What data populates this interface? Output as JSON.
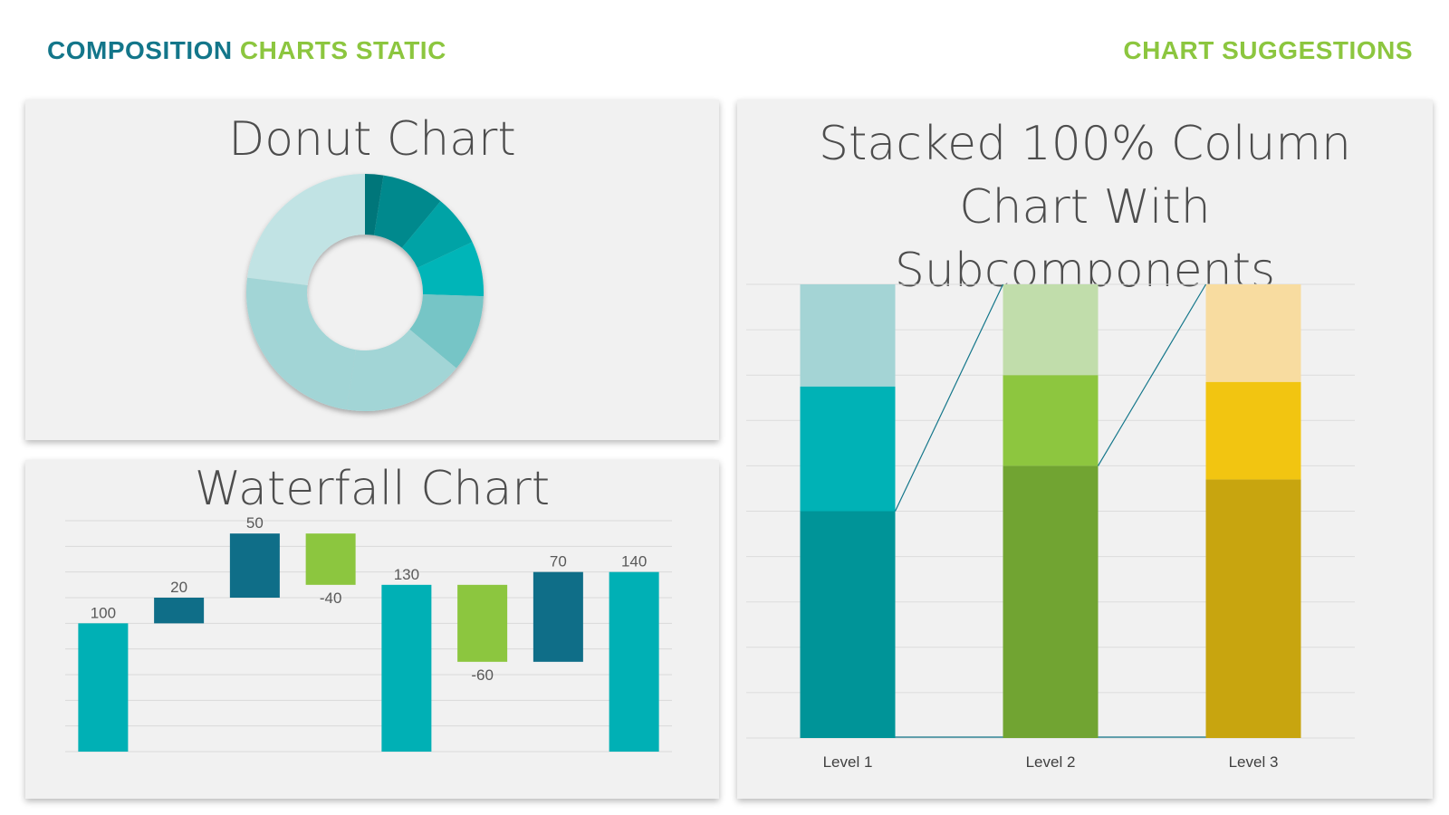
{
  "header": {
    "left_part1": "COMPOSITION",
    "left_part2": "CHARTS STATIC",
    "right": "CHART SUGGESTIONS",
    "color_primary": "#13768a",
    "color_accent": "#8cc63f"
  },
  "chart_data": [
    {
      "type": "pie",
      "variant": "donut",
      "title": "Donut Chart",
      "values": [
        2.5,
        8.5,
        7,
        7.5,
        10.5,
        16.5,
        24.5,
        23
      ],
      "colors": [
        "#00767a",
        "#00898d",
        "#00a3a6",
        "#00b5b8",
        "#76c5c6",
        "#a2d5d6",
        "#a2d5d6",
        "#c1e3e4"
      ],
      "legend": "none"
    },
    {
      "type": "bar",
      "variant": "waterfall",
      "title": "Waterfall Chart",
      "categories": [
        "",
        "",
        "",
        "",
        "",
        "",
        "",
        ""
      ],
      "values": [
        100,
        20,
        50,
        -40,
        130,
        -60,
        70,
        140
      ],
      "data_labels": [
        "100",
        "20",
        "50",
        "-40",
        "130",
        "-60",
        "70",
        "140"
      ],
      "kinds": [
        "total",
        "increase",
        "increase",
        "decrease",
        "total",
        "decrease",
        "increase",
        "total"
      ],
      "colors": {
        "total": "#00b0b5",
        "increase": "#0f6e88",
        "decrease": "#8cc63f"
      },
      "ylim": [
        0,
        180
      ],
      "grid": true
    },
    {
      "type": "bar",
      "variant": "stacked-100",
      "title": "Stacked 100% Column Chart With Subcomponents",
      "categories": [
        "Level 1",
        "Level 2",
        "Level 3"
      ],
      "series": [
        {
          "values": [
            50,
            60,
            57
          ],
          "colors": [
            "#009498",
            "#71a432",
            "#c8a50f"
          ]
        },
        {
          "values": [
            27.5,
            20,
            21.5
          ],
          "colors": [
            "#00b2b6",
            "#8dc63f",
            "#f2c511"
          ]
        },
        {
          "values": [
            22.5,
            20,
            21.5
          ],
          "colors": [
            "#a4d4d5",
            "#c1ddab",
            "#f8dca0"
          ]
        }
      ],
      "ylim": [
        0,
        100
      ],
      "grid": true,
      "connector_color": "#13768a"
    }
  ]
}
